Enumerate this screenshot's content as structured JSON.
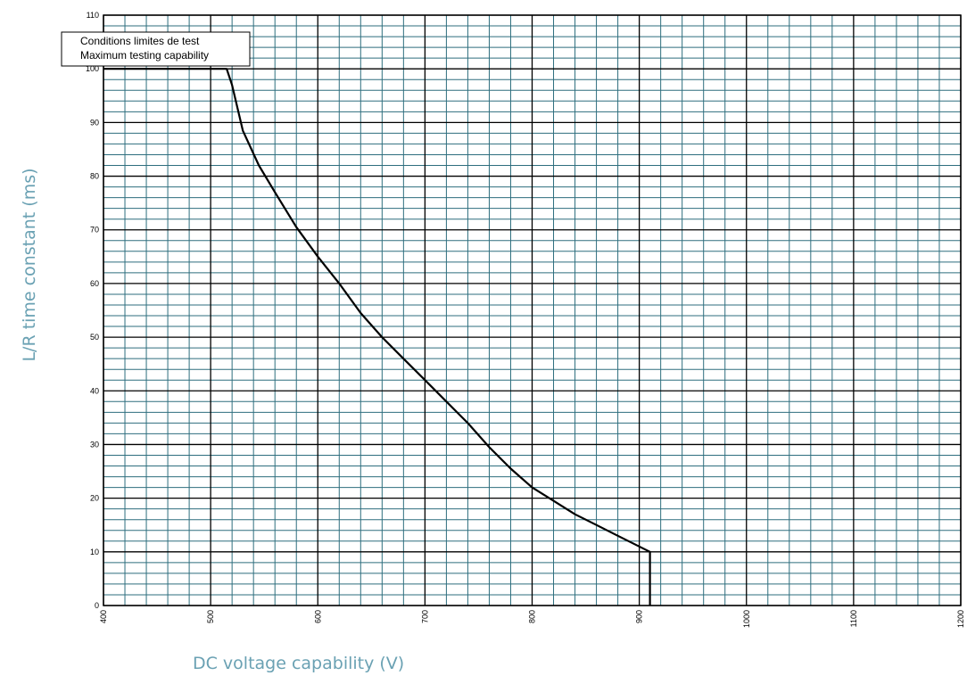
{
  "chart_data": {
    "type": "line",
    "title": "",
    "xlabel": "DC voltage capability (V)",
    "ylabel": "L/R time constant (ms)",
    "xlim": [
      400,
      1200
    ],
    "ylim": [
      0,
      110
    ],
    "x_ticks": [
      400,
      500,
      600,
      700,
      800,
      900,
      1000,
      1100,
      1200
    ],
    "y_ticks": [
      0,
      10,
      20,
      30,
      40,
      50,
      60,
      70,
      80,
      90,
      100,
      110
    ],
    "x_minor_step": 20,
    "y_minor_step": 2,
    "grid": true,
    "grid_color": "#2e6e7e",
    "major_grid_color": "#000000",
    "annotation": {
      "lines": [
        "Conditions limites de test",
        "Maximum testing capability"
      ],
      "anchor": "top-left"
    },
    "series": [
      {
        "color": "#000000",
        "x": [
          400,
          515,
          520,
          530,
          545,
          560,
          580,
          600,
          620,
          640,
          660,
          680,
          700,
          720,
          740,
          760,
          780,
          800,
          820,
          840,
          860,
          880,
          900,
          910,
          910
        ],
        "y": [
          100,
          100,
          97,
          88.5,
          82,
          77,
          70.5,
          65,
          60,
          54.5,
          50,
          46,
          42,
          38,
          34,
          29.5,
          25.5,
          22,
          19.5,
          17,
          15,
          13,
          11,
          10,
          0
        ]
      }
    ]
  }
}
